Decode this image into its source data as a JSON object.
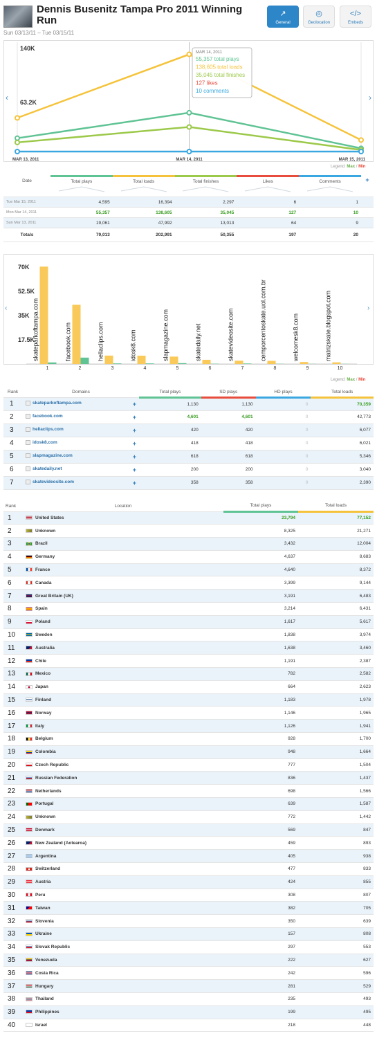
{
  "header": {
    "title": "Dennis Busenitz Tampa Pro 2011 Winning Run",
    "date_range": "Sun 03/13/11 – Tue 03/15/11",
    "tabs": [
      {
        "label": "General",
        "icon": "chart-trend-icon",
        "glyph": "↗"
      },
      {
        "label": "Geolocation",
        "icon": "globe-icon",
        "glyph": "◎"
      },
      {
        "label": "Embeds",
        "icon": "code-icon",
        "glyph": "</>"
      }
    ]
  },
  "nav": {
    "prev": "‹",
    "next": "›"
  },
  "legend": {
    "label": "Legend:",
    "max": "Max",
    "sep": " / ",
    "min": "Min"
  },
  "chart_data": [
    {
      "type": "line",
      "x": [
        "MAR 13, 2011",
        "MAR 14, 2011",
        "MAR 15, 2011"
      ],
      "ylim": [
        0,
        150000
      ],
      "y_ticks_shown": [
        140000,
        63200
      ],
      "tick_labels": [
        "140K",
        "63.2K"
      ],
      "series": [
        {
          "name": "total loads",
          "color": "#f5c33b",
          "values": [
            47992,
            138605,
            16394
          ]
        },
        {
          "name": "total plays",
          "color": "#5fc394",
          "values": [
            19061,
            55357,
            4595
          ]
        },
        {
          "name": "total finishes",
          "color": "#9cc94a",
          "values": [
            13013,
            35045,
            2297
          ]
        },
        {
          "name": "comments",
          "color": "#3aa7e0",
          "values": [
            9,
            10,
            1
          ]
        }
      ],
      "tooltip": {
        "date": "MAR 14, 2011",
        "lines": [
          {
            "text": "55,357 total plays",
            "color": "#5fc394"
          },
          {
            "text": "138,605 total loads",
            "color": "#f5c33b"
          },
          {
            "text": "35,045 total finishes",
            "color": "#9cc94a"
          },
          {
            "text": "127 likes",
            "color": "#e74c3c"
          },
          {
            "text": "10 comments",
            "color": "#3aa7e0"
          }
        ]
      }
    },
    {
      "type": "bar",
      "categories": [
        "1",
        "2",
        "3",
        "4",
        "5",
        "6",
        "7",
        "8",
        "9",
        "10"
      ],
      "domains": [
        "skateparkoftampa.com",
        "facebook.com",
        "hellaclips.com",
        "idosk8.com",
        "slapmagazine.com",
        "skatedaily.net",
        "skatevideosite.com",
        "cemporcentoskate.uol.com.br",
        "welcomesk8.com",
        "matrizskate.blogspot.com"
      ],
      "ylim": [
        0,
        75000
      ],
      "y_ticks": [
        70000,
        52500,
        35000,
        17500
      ],
      "tick_labels": [
        "70K",
        "52.5K",
        "35K",
        "17.5K"
      ],
      "series": [
        {
          "name": "Total loads",
          "color": "#f9c95a",
          "values": [
            70359,
            42773,
            6077,
            6021,
            5346,
            3040,
            2390,
            2300,
            1400,
            1200
          ]
        },
        {
          "name": "Total plays",
          "color": "#5fc394",
          "values": [
            1130,
            4601,
            420,
            418,
            618,
            200,
            358,
            150,
            100,
            80
          ]
        }
      ]
    }
  ],
  "stats_table": {
    "headers": [
      "Date",
      "Total plays",
      "Total loads",
      "Total finishes",
      "Likes",
      "Comments"
    ],
    "add": "+",
    "header_colors": [
      "#5fc394",
      "#f5c33b",
      "#9cc94a",
      "#e74c3c",
      "#3aa7e0"
    ],
    "rows": [
      {
        "date": "Tue Mar 15, 2011",
        "plays": "4,595",
        "loads": "16,394",
        "finishes": "2,297",
        "likes": "6",
        "comments": "1"
      },
      {
        "date": "Mon Mar 14, 2011",
        "plays": "55,357",
        "loads": "138,605",
        "finishes": "35,045",
        "likes": "127",
        "comments": "10"
      },
      {
        "date": "Sun Mar 13, 2011",
        "plays": "19,061",
        "loads": "47,992",
        "finishes": "13,013",
        "likes": "64",
        "comments": "9"
      }
    ],
    "totals": {
      "label": "Totals",
      "plays": "79,013",
      "loads": "202,991",
      "finishes": "50,355",
      "likes": "197",
      "comments": "20"
    }
  },
  "domains_table": {
    "headers": [
      "Rank",
      "Domains",
      "Total plays",
      "SD plays",
      "HD plays",
      "Total loads"
    ],
    "add": "+",
    "rows": [
      {
        "rank": "1",
        "domain": "skateparkoftampa.com",
        "plays": "1,130",
        "sd": "1,130",
        "hd": "0",
        "loads": "70,359"
      },
      {
        "rank": "2",
        "domain": "facebook.com",
        "plays": "4,601",
        "sd": "4,601",
        "hd": "0",
        "loads": "42,773"
      },
      {
        "rank": "3",
        "domain": "hellaclips.com",
        "plays": "420",
        "sd": "420",
        "hd": "0",
        "loads": "6,077"
      },
      {
        "rank": "4",
        "domain": "idosk8.com",
        "plays": "418",
        "sd": "418",
        "hd": "0",
        "loads": "6,021"
      },
      {
        "rank": "5",
        "domain": "slapmagazine.com",
        "plays": "618",
        "sd": "618",
        "hd": "0",
        "loads": "5,346"
      },
      {
        "rank": "6",
        "domain": "skatedaily.net",
        "plays": "200",
        "sd": "200",
        "hd": "0",
        "loads": "3,040"
      },
      {
        "rank": "7",
        "domain": "skatevideosite.com",
        "plays": "358",
        "sd": "358",
        "hd": "0",
        "loads": "2,390"
      }
    ]
  },
  "location_table": {
    "headers": [
      "Rank",
      "Location",
      "Total plays",
      "Total loads"
    ],
    "rows": [
      {
        "rank": "1",
        "loc": "United States",
        "plays": "23,794",
        "loads": "77,152",
        "flag": "us"
      },
      {
        "rank": "2",
        "loc": "Unknown",
        "plays": "8,325",
        "loads": "21,271",
        "flag": "unknown"
      },
      {
        "rank": "3",
        "loc": "Brazil",
        "plays": "3,432",
        "loads": "12,004",
        "flag": "br"
      },
      {
        "rank": "4",
        "loc": "Germany",
        "plays": "4,637",
        "loads": "8,683",
        "flag": "de"
      },
      {
        "rank": "5",
        "loc": "France",
        "plays": "4,640",
        "loads": "8,372",
        "flag": "fr"
      },
      {
        "rank": "6",
        "loc": "Canada",
        "plays": "3,399",
        "loads": "9,144",
        "flag": "ca"
      },
      {
        "rank": "7",
        "loc": "Great Britain (UK)",
        "plays": "3,191",
        "loads": "6,483",
        "flag": "gb"
      },
      {
        "rank": "8",
        "loc": "Spain",
        "plays": "3,214",
        "loads": "6,431",
        "flag": "es"
      },
      {
        "rank": "9",
        "loc": "Poland",
        "plays": "1,617",
        "loads": "5,617",
        "flag": "pl"
      },
      {
        "rank": "10",
        "loc": "Sweden",
        "plays": "1,838",
        "loads": "3,974",
        "flag": "se"
      },
      {
        "rank": "11",
        "loc": "Australia",
        "plays": "1,638",
        "loads": "3,460",
        "flag": "au"
      },
      {
        "rank": "12",
        "loc": "Chile",
        "plays": "1,191",
        "loads": "2,387",
        "flag": "cl"
      },
      {
        "rank": "13",
        "loc": "Mexico",
        "plays": "782",
        "loads": "2,582",
        "flag": "mx"
      },
      {
        "rank": "14",
        "loc": "Japan",
        "plays": "664",
        "loads": "2,623",
        "flag": "jp"
      },
      {
        "rank": "15",
        "loc": "Finland",
        "plays": "1,183",
        "loads": "1,978",
        "flag": "fi"
      },
      {
        "rank": "16",
        "loc": "Norway",
        "plays": "1,146",
        "loads": "1,965",
        "flag": "no"
      },
      {
        "rank": "17",
        "loc": "Italy",
        "plays": "1,126",
        "loads": "1,941",
        "flag": "it"
      },
      {
        "rank": "18",
        "loc": "Belgium",
        "plays": "928",
        "loads": "1,700",
        "flag": "be"
      },
      {
        "rank": "19",
        "loc": "Colombia",
        "plays": "948",
        "loads": "1,664",
        "flag": "co"
      },
      {
        "rank": "20",
        "loc": "Czech Republic",
        "plays": "777",
        "loads": "1,504",
        "flag": "cz"
      },
      {
        "rank": "21",
        "loc": "Russian Federation",
        "plays": "836",
        "loads": "1,437",
        "flag": "ru"
      },
      {
        "rank": "22",
        "loc": "Netherlands",
        "plays": "698",
        "loads": "1,566",
        "flag": "nl"
      },
      {
        "rank": "23",
        "loc": "Portugal",
        "plays": "639",
        "loads": "1,587",
        "flag": "pt"
      },
      {
        "rank": "24",
        "loc": "Unknown",
        "plays": "772",
        "loads": "1,442",
        "flag": "unknown"
      },
      {
        "rank": "25",
        "loc": "Denmark",
        "plays": "569",
        "loads": "847",
        "flag": "dk"
      },
      {
        "rank": "26",
        "loc": "New Zealand (Aotearoa)",
        "plays": "459",
        "loads": "893",
        "flag": "nz"
      },
      {
        "rank": "27",
        "loc": "Argentina",
        "plays": "405",
        "loads": "938",
        "flag": "ar"
      },
      {
        "rank": "28",
        "loc": "Switzerland",
        "plays": "477",
        "loads": "833",
        "flag": "ch"
      },
      {
        "rank": "29",
        "loc": "Austria",
        "plays": "424",
        "loads": "855",
        "flag": "at"
      },
      {
        "rank": "30",
        "loc": "Peru",
        "plays": "308",
        "loads": "807",
        "flag": "pe"
      },
      {
        "rank": "31",
        "loc": "Taiwan",
        "plays": "382",
        "loads": "705",
        "flag": "tw"
      },
      {
        "rank": "32",
        "loc": "Slovenia",
        "plays": "350",
        "loads": "639",
        "flag": "si"
      },
      {
        "rank": "33",
        "loc": "Ukraine",
        "plays": "157",
        "loads": "808",
        "flag": "ua"
      },
      {
        "rank": "34",
        "loc": "Slovak Republic",
        "plays": "297",
        "loads": "553",
        "flag": "sk"
      },
      {
        "rank": "35",
        "loc": "Venezuela",
        "plays": "222",
        "loads": "627",
        "flag": "ve"
      },
      {
        "rank": "36",
        "loc": "Costa Rica",
        "plays": "242",
        "loads": "596",
        "flag": "cr"
      },
      {
        "rank": "37",
        "loc": "Hungary",
        "plays": "281",
        "loads": "529",
        "flag": "hu"
      },
      {
        "rank": "38",
        "loc": "Thailand",
        "plays": "235",
        "loads": "493",
        "flag": "th"
      },
      {
        "rank": "39",
        "loc": "Philippines",
        "plays": "199",
        "loads": "495",
        "flag": "ph"
      },
      {
        "rank": "40",
        "loc": "Israel",
        "plays": "218",
        "loads": "448",
        "flag": "il"
      }
    ]
  }
}
